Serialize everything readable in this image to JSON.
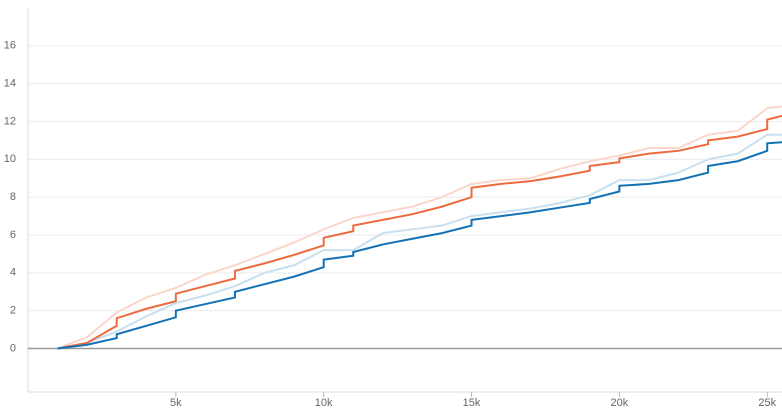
{
  "chart_data": {
    "type": "line",
    "xlim": [
      0,
      25500
    ],
    "ylim": [
      -2.3,
      18
    ],
    "xticks": [
      {
        "value": 5000,
        "label": "5k"
      },
      {
        "value": 10000,
        "label": "10k"
      },
      {
        "value": 15000,
        "label": "15k"
      },
      {
        "value": 20000,
        "label": "20k"
      },
      {
        "value": 25000,
        "label": "25k"
      }
    ],
    "yticks": [
      0,
      2,
      4,
      6,
      8,
      10,
      12,
      14,
      16
    ],
    "grid": true,
    "series": [
      {
        "color": "#fbd6ca",
        "x": [
          1000,
          2000,
          3000,
          4000,
          5000,
          6000,
          7000,
          8000,
          9000,
          10000,
          11000,
          12000,
          13000,
          14000,
          15000,
          16000,
          17000,
          18000,
          19000,
          20000,
          21000,
          22000,
          23000,
          24000,
          25000,
          25500
        ],
        "values": [
          0,
          0.6,
          1.9,
          2.7,
          3.2,
          3.9,
          4.4,
          5,
          5.6,
          6.3,
          6.9,
          7.2,
          7.5,
          8.0,
          8.7,
          8.9,
          9.0,
          9.5,
          9.9,
          10.2,
          10.6,
          10.6,
          11.3,
          11.5,
          12.7,
          12.8
        ]
      },
      {
        "color": "#c8e0f0",
        "x": [
          1000,
          2000,
          3000,
          4000,
          5000,
          6000,
          7000,
          8000,
          9000,
          10000,
          11000,
          12000,
          13000,
          14000,
          15000,
          16000,
          17000,
          18000,
          19000,
          20000,
          21000,
          22000,
          23000,
          24000,
          25000,
          25500
        ],
        "values": [
          0,
          0.3,
          0.9,
          1.7,
          2.4,
          2.8,
          3.3,
          4.0,
          4.4,
          5.2,
          5.2,
          6.1,
          6.3,
          6.5,
          7.0,
          7.2,
          7.4,
          7.7,
          8.1,
          8.9,
          8.9,
          9.3,
          10.0,
          10.3,
          11.3,
          11.3
        ]
      },
      {
        "color": "#ec6b3e",
        "x": [
          1000,
          2000,
          3000,
          3000,
          4000,
          5000,
          5000,
          6000,
          7000,
          7000,
          8000,
          9000,
          10000,
          10000,
          11000,
          11000,
          12000,
          13000,
          14000,
          15000,
          15000,
          16000,
          17000,
          18000,
          19000,
          19000,
          20000,
          20000,
          21000,
          22000,
          23000,
          23000,
          24000,
          25000,
          25000,
          25500
        ],
        "values": [
          0,
          0.3,
          1.2,
          1.6,
          2.1,
          2.5,
          2.9,
          3.3,
          3.7,
          4.1,
          4.5,
          4.95,
          5.45,
          5.85,
          6.2,
          6.5,
          6.8,
          7.1,
          7.5,
          8.0,
          8.5,
          8.7,
          8.85,
          9.1,
          9.4,
          9.65,
          9.85,
          10.05,
          10.3,
          10.45,
          10.8,
          11.0,
          11.2,
          11.6,
          12.1,
          12.3
        ]
      },
      {
        "color": "#1272b5",
        "x": [
          1000,
          2000,
          3000,
          3000,
          4000,
          5000,
          5000,
          6000,
          7000,
          7000,
          8000,
          9000,
          10000,
          10000,
          11000,
          11000,
          12000,
          13000,
          14000,
          15000,
          15000,
          16000,
          17000,
          18000,
          19000,
          19000,
          20000,
          20000,
          21000,
          22000,
          23000,
          23000,
          24000,
          25000,
          25000,
          25500
        ],
        "values": [
          0,
          0.2,
          0.55,
          0.75,
          1.2,
          1.65,
          2.0,
          2.35,
          2.7,
          3.0,
          3.4,
          3.8,
          4.3,
          4.7,
          4.9,
          5.1,
          5.5,
          5.8,
          6.1,
          6.5,
          6.8,
          7.0,
          7.2,
          7.45,
          7.7,
          7.9,
          8.3,
          8.6,
          8.7,
          8.9,
          9.3,
          9.65,
          9.9,
          10.45,
          10.85,
          10.9
        ]
      }
    ]
  }
}
